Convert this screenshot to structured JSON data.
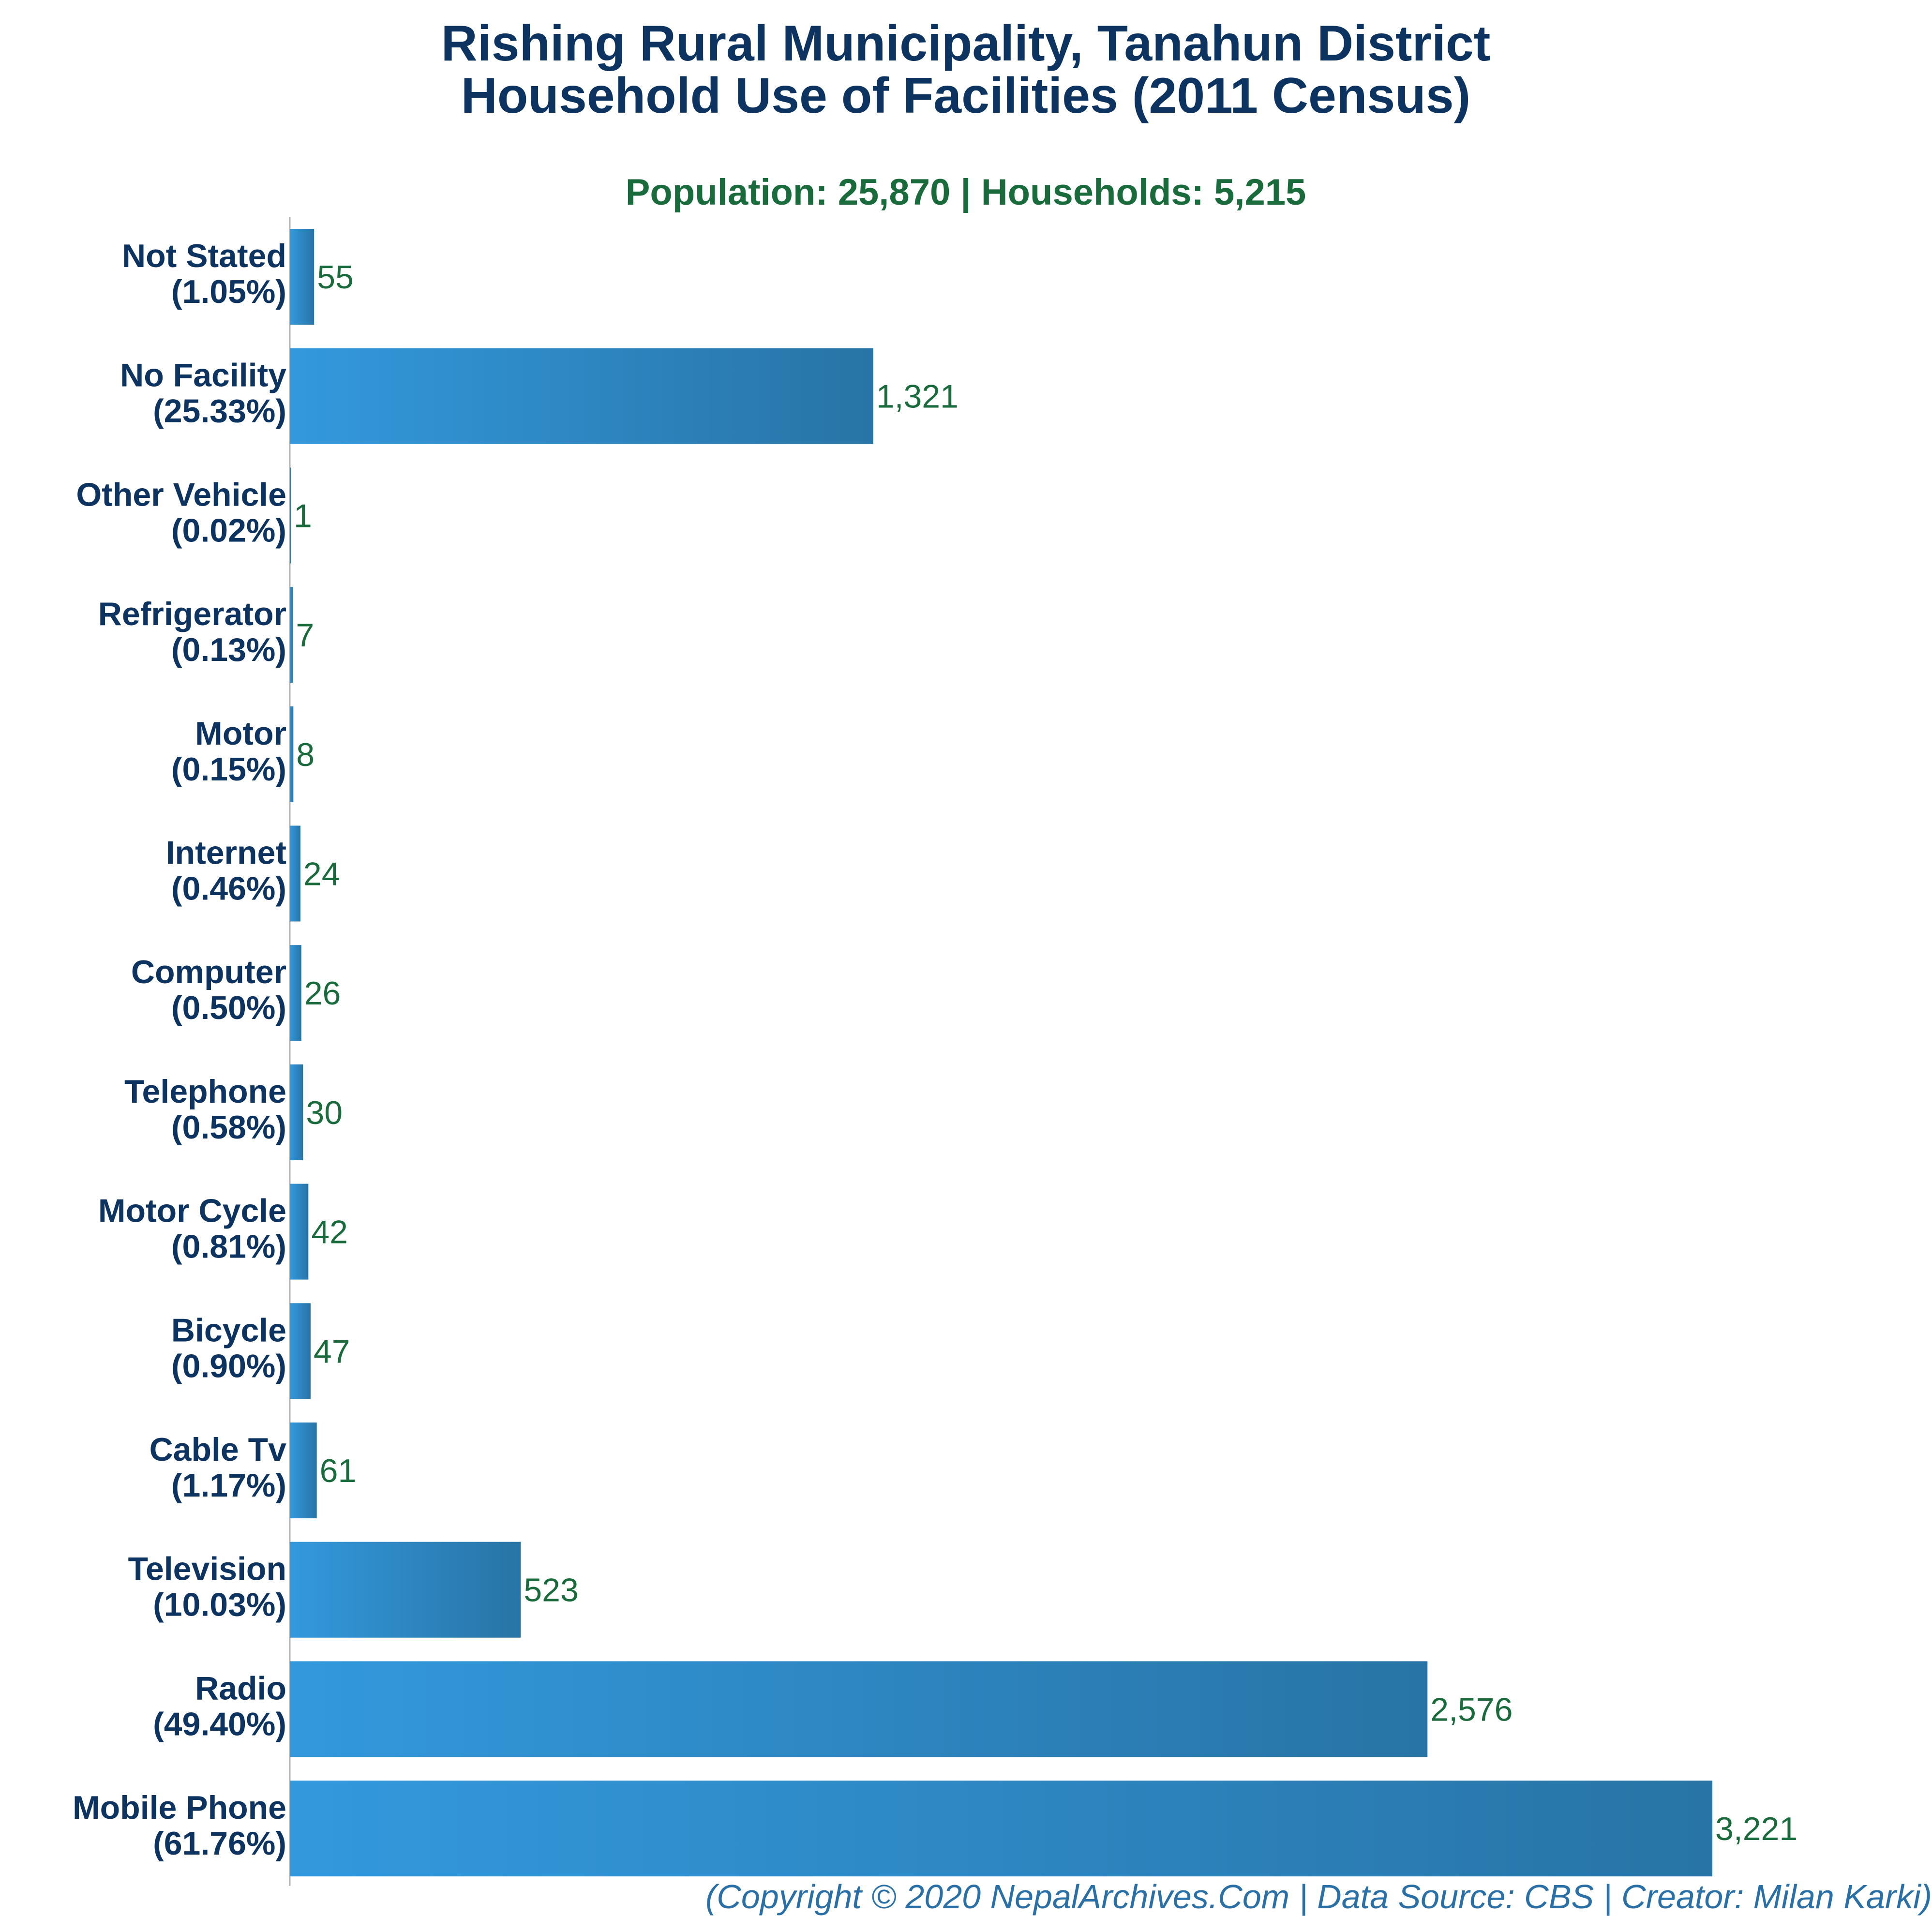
{
  "colors": {
    "title": "#0d3361",
    "subtitle": "#1a6b3c",
    "category_label": "#0d3361",
    "value_label": "#1a6b3c",
    "footer": "#2a6fa6",
    "bar_start": "#3399dd",
    "bar_end": "#2874a6",
    "axis": "#b0b0b0"
  },
  "chart_data": {
    "type": "bar",
    "orientation": "horizontal",
    "title_lines": [
      "Rishing Rural Municipality, Tanahun District",
      "Household Use of Facilities (2011 Census)"
    ],
    "subtitle": "Population: 25,870 | Households: 5,215",
    "xlabel": "",
    "ylabel": "",
    "xlim": [
      0,
      3221
    ],
    "grid": false,
    "legend": "none",
    "categories": [
      "Not Stated",
      "No Facility",
      "Other Vehicle",
      "Refrigerator",
      "Motor",
      "Internet",
      "Computer",
      "Telephone",
      "Motor Cycle",
      "Bicycle",
      "Cable Tv",
      "Television",
      "Radio",
      "Mobile Phone"
    ],
    "percent_labels": [
      "(1.05%)",
      "(25.33%)",
      "(0.02%)",
      "(0.13%)",
      "(0.15%)",
      "(0.46%)",
      "(0.50%)",
      "(0.58%)",
      "(0.81%)",
      "(0.90%)",
      "(1.17%)",
      "(10.03%)",
      "(49.40%)",
      "(61.76%)"
    ],
    "values": [
      55,
      1321,
      1,
      7,
      8,
      24,
      26,
      30,
      42,
      47,
      61,
      523,
      2576,
      3221
    ],
    "value_labels": [
      "55",
      "1,321",
      "1",
      "7",
      "8",
      "24",
      "26",
      "30",
      "42",
      "47",
      "61",
      "523",
      "2,576",
      "3,221"
    ]
  },
  "footer": "(Copyright © 2020 NepalArchives.Com | Data Source: CBS | Creator: Milan Karki)"
}
